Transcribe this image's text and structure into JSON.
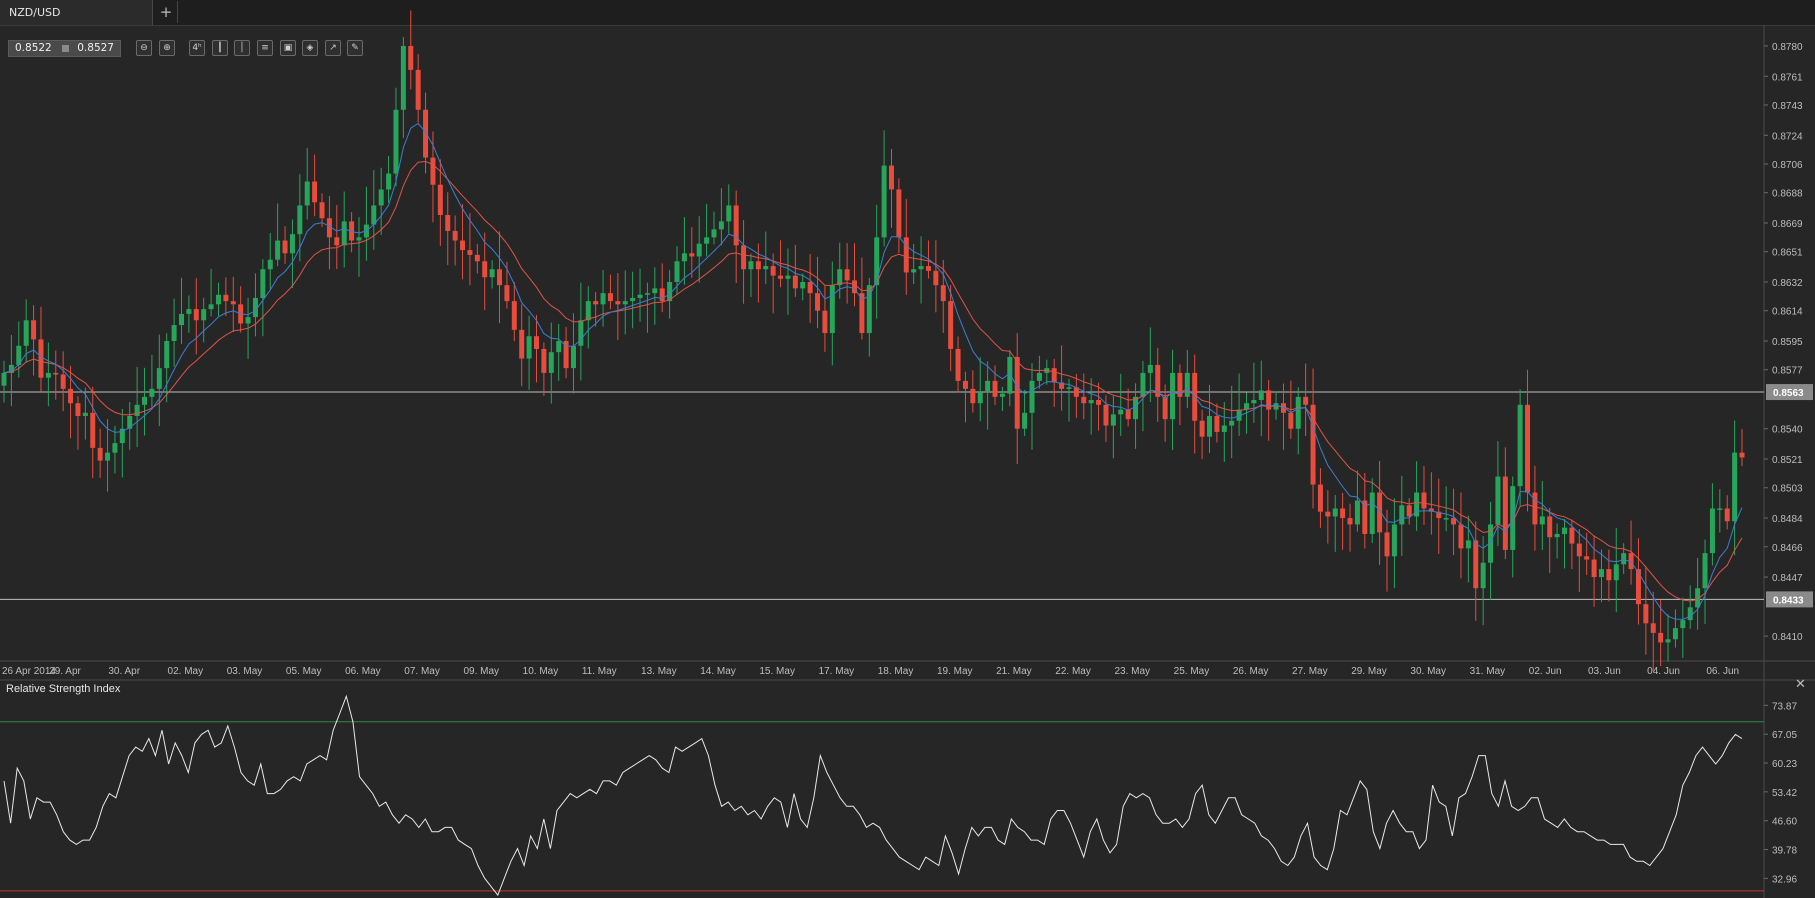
{
  "tab": {
    "title": "NZD/USD",
    "add_label": "+"
  },
  "quote": {
    "bid": "0.8522",
    "ask": "0.8527"
  },
  "toolbar": [
    {
      "name": "zoom-out-icon",
      "glyph": "⊖"
    },
    {
      "name": "zoom-in-icon",
      "glyph": "⊕"
    },
    {
      "name": "timeframe-icon",
      "glyph": "4ʰ"
    },
    {
      "name": "candles-icon",
      "glyph": "┃"
    },
    {
      "name": "bars-icon",
      "glyph": "│"
    },
    {
      "name": "indicators-icon",
      "glyph": "≡"
    },
    {
      "name": "chart-type-icon",
      "glyph": "▣"
    },
    {
      "name": "objects-icon",
      "glyph": "◈"
    },
    {
      "name": "line-tool-icon",
      "glyph": "↗"
    },
    {
      "name": "draw-tool-icon",
      "glyph": "✎"
    }
  ],
  "colors": {
    "background": "#262626",
    "bull": "#26a65b",
    "bear": "#e74c3c",
    "ma_fast": "#3a7fd0",
    "ma_slow": "#e0534a",
    "hline": "#bfbfbf",
    "rsi_line": "#e8e8e8",
    "rsi_upper": "#2e8b3e",
    "rsi_lower": "#c0392b"
  },
  "chart_data": [
    {
      "type": "candlestick",
      "symbol": "NZD/USD",
      "price_axis_ticks": [
        "0.8780",
        "0.8761",
        "0.8743",
        "0.8724",
        "0.8706",
        "0.8688",
        "0.8669",
        "0.8651",
        "0.8632",
        "0.8614",
        "0.8595",
        "0.8577",
        "0.8540",
        "0.8521",
        "0.8503",
        "0.8484",
        "0.8466",
        "0.8447",
        "0.8410"
      ],
      "ylim": [
        0.8395,
        0.879
      ],
      "horizontal_lines": [
        {
          "value": 0.8563,
          "label": "0.8563"
        },
        {
          "value": 0.8433,
          "label": "0.8433"
        }
      ],
      "x_labels": [
        "26 Apr 2014",
        "29. Apr",
        "30. Apr",
        "02. May",
        "03. May",
        "05. May",
        "06. May",
        "07. May",
        "09. May",
        "10. May",
        "11. May",
        "13. May",
        "14. May",
        "15. May",
        "17. May",
        "18. May",
        "19. May",
        "21. May",
        "22. May",
        "23. May",
        "25. May",
        "26. May",
        "27. May",
        "29. May",
        "30. May",
        "31. May",
        "02. Jun",
        "03. Jun",
        "04. Jun",
        "06. Jun"
      ],
      "close_series": [
        0.8575,
        0.858,
        0.8592,
        0.8608,
        0.8596,
        0.8572,
        0.8575,
        0.8574,
        0.8565,
        0.8556,
        0.8548,
        0.855,
        0.8528,
        0.852,
        0.8525,
        0.8531,
        0.854,
        0.8548,
        0.8555,
        0.856,
        0.8565,
        0.8578,
        0.8595,
        0.8605,
        0.8612,
        0.8615,
        0.8608,
        0.8615,
        0.8618,
        0.8624,
        0.862,
        0.8618,
        0.8606,
        0.861,
        0.8622,
        0.864,
        0.8646,
        0.8658,
        0.865,
        0.8662,
        0.868,
        0.8695,
        0.8682,
        0.8672,
        0.866,
        0.8655,
        0.867,
        0.8658,
        0.866,
        0.8668,
        0.868,
        0.869,
        0.87,
        0.874,
        0.878,
        0.8765,
        0.874,
        0.871,
        0.8693,
        0.8674,
        0.8664,
        0.8658,
        0.8652,
        0.8649,
        0.8645,
        0.8635,
        0.864,
        0.863,
        0.862,
        0.8602,
        0.8584,
        0.8598,
        0.859,
        0.8575,
        0.8588,
        0.8595,
        0.8578,
        0.8592,
        0.8608,
        0.862,
        0.8618,
        0.8625,
        0.862,
        0.8618,
        0.862,
        0.8622,
        0.8624,
        0.8625,
        0.8628,
        0.862,
        0.8632,
        0.8645,
        0.865,
        0.8648,
        0.8656,
        0.866,
        0.8665,
        0.867,
        0.868,
        0.8655,
        0.864,
        0.8645,
        0.864,
        0.8642,
        0.8636,
        0.8634,
        0.8636,
        0.8628,
        0.8632,
        0.8625,
        0.8614,
        0.86,
        0.863,
        0.864,
        0.8633,
        0.8625,
        0.86,
        0.863,
        0.866,
        0.8705,
        0.869,
        0.866,
        0.8638,
        0.864,
        0.8642,
        0.8639,
        0.863,
        0.862,
        0.859,
        0.857,
        0.8565,
        0.8556,
        0.8563,
        0.857,
        0.856,
        0.8562,
        0.8585,
        0.854,
        0.855,
        0.857,
        0.8575,
        0.8578,
        0.8569,
        0.8565,
        0.8566,
        0.856,
        0.8556,
        0.8558,
        0.8555,
        0.8542,
        0.8549,
        0.8552,
        0.8546,
        0.856,
        0.8575,
        0.858,
        0.856,
        0.8546,
        0.8575,
        0.856,
        0.8575,
        0.8545,
        0.8535,
        0.8548,
        0.8538,
        0.8542,
        0.8545,
        0.8552,
        0.8556,
        0.8558,
        0.8564,
        0.8552,
        0.8556,
        0.855,
        0.854,
        0.856,
        0.8555,
        0.8505,
        0.8488,
        0.8485,
        0.849,
        0.8484,
        0.848,
        0.8495,
        0.8474,
        0.85,
        0.8475,
        0.846,
        0.848,
        0.8492,
        0.8485,
        0.85,
        0.849,
        0.8488,
        0.8484,
        0.8484,
        0.848,
        0.8465,
        0.847,
        0.844,
        0.8456,
        0.848,
        0.851,
        0.8464,
        0.8504,
        0.8555,
        0.85,
        0.848,
        0.8485,
        0.8472,
        0.8474,
        0.8478,
        0.8468,
        0.846,
        0.8458,
        0.8447,
        0.8452,
        0.8445,
        0.8455,
        0.8462,
        0.8452,
        0.843,
        0.8418,
        0.8412,
        0.8406,
        0.8408,
        0.8415,
        0.842,
        0.8428,
        0.844,
        0.8462,
        0.849,
        0.849,
        0.8482,
        0.8525,
        0.8522
      ],
      "moving_averages": [
        {
          "period": "fast"
        },
        {
          "period": "slow"
        }
      ]
    },
    {
      "type": "line",
      "title": "Relative Strength Index",
      "y_ticks": [
        "73.87",
        "67.05",
        "60.23",
        "53.42",
        "46.60",
        "39.78",
        "32.96"
      ],
      "ylim": [
        29.5,
        77.5
      ],
      "levels": [
        70,
        30
      ],
      "rsi_values": [
        56,
        46,
        59,
        56,
        47,
        52,
        51,
        51,
        48,
        44,
        42,
        41,
        42,
        42,
        45,
        50,
        53,
        52,
        57,
        62,
        64,
        63,
        66,
        62,
        68,
        60,
        65,
        62,
        58,
        65,
        67,
        68,
        64,
        65,
        69,
        64,
        58,
        56,
        55,
        60,
        53,
        53,
        54,
        56,
        57,
        56,
        60,
        61,
        62,
        61,
        68,
        72,
        76,
        70,
        57,
        55,
        53,
        50,
        51,
        48,
        46,
        48,
        47,
        45,
        47,
        44,
        44,
        45,
        45,
        42,
        41,
        40,
        36,
        33,
        31,
        29,
        33,
        37,
        40,
        36,
        43,
        40,
        47,
        40,
        49,
        51,
        53,
        52,
        53,
        54,
        53,
        56,
        56,
        55,
        58,
        59,
        60,
        61,
        62,
        61,
        59,
        58,
        64,
        63,
        64,
        65,
        66,
        62,
        55,
        50,
        51,
        49,
        50,
        48,
        49,
        47,
        50,
        52,
        51,
        45,
        53,
        47,
        45,
        52,
        62,
        58,
        55,
        52,
        50,
        50,
        48,
        45,
        46,
        45,
        42,
        40,
        38,
        37,
        36,
        35,
        38,
        37,
        36,
        43,
        39,
        34,
        40,
        45,
        43,
        45,
        45,
        42,
        41,
        47,
        45,
        44,
        42,
        42,
        41,
        47,
        49,
        49,
        46,
        42,
        38,
        44,
        47,
        42,
        39,
        41,
        50,
        53,
        52,
        53,
        52,
        48,
        46,
        46,
        47,
        45,
        47,
        53,
        55,
        48,
        46,
        49,
        52,
        52,
        48,
        47,
        46,
        43,
        42,
        40,
        37,
        36,
        38,
        43,
        46,
        38,
        36,
        35,
        40,
        49,
        48,
        52,
        56,
        54,
        44,
        40,
        46,
        49,
        46,
        44,
        44,
        40,
        42,
        55,
        51,
        50,
        43,
        52,
        53,
        57,
        62,
        62,
        53,
        50,
        56,
        50,
        49,
        50,
        52,
        52,
        47,
        46,
        45,
        47,
        45,
        44,
        44,
        43,
        42,
        42,
        41,
        41,
        41,
        38,
        37,
        37,
        36,
        38,
        40,
        44,
        48,
        55,
        58,
        62,
        64,
        62,
        60,
        62,
        65,
        67,
        66
      ]
    }
  ]
}
